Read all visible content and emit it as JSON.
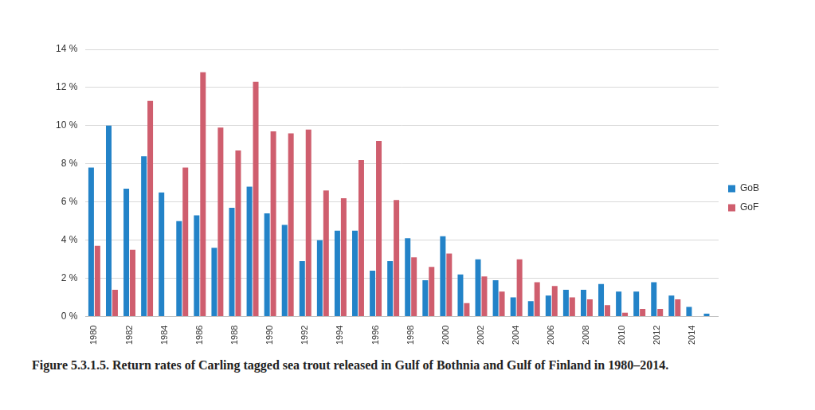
{
  "chart_data": {
    "type": "bar",
    "title": "Figure 5.3.1.5. Return rates of Carling tagged sea trout released in Gulf of Bothnia and Gulf of Finland in 1980–2014.",
    "categories": [
      "1980",
      null,
      "1982",
      null,
      "1984",
      null,
      "1986",
      null,
      "1988",
      null,
      "1990",
      null,
      "1992",
      null,
      "1994",
      null,
      "1996",
      null,
      "1998",
      null,
      "2000",
      null,
      "2002",
      null,
      "2004",
      null,
      "2006",
      null,
      "2008",
      null,
      "2010",
      null,
      "2012",
      null,
      "2014",
      null
    ],
    "series": [
      {
        "name": "GoB",
        "color": "#2383c8",
        "values": [
          7.8,
          10.0,
          6.7,
          8.4,
          6.5,
          5.0,
          5.3,
          3.6,
          5.7,
          6.8,
          5.4,
          4.8,
          2.9,
          4.0,
          4.5,
          4.5,
          2.4,
          2.9,
          4.1,
          1.9,
          4.2,
          2.2,
          3.0,
          1.9,
          1.0,
          0.8,
          1.1,
          1.4,
          1.4,
          1.7,
          1.3,
          1.3,
          1.8,
          1.1,
          0.5,
          0.15
        ]
      },
      {
        "name": "GoF",
        "color": "#cf5e6e",
        "values": [
          3.7,
          1.4,
          3.5,
          11.3,
          null,
          7.8,
          12.8,
          9.9,
          8.7,
          12.3,
          9.7,
          9.6,
          9.8,
          6.6,
          6.2,
          8.2,
          9.2,
          6.1,
          3.1,
          2.6,
          3.3,
          0.7,
          2.1,
          1.3,
          3.0,
          1.8,
          1.6,
          1.0,
          0.9,
          0.6,
          0.2,
          0.4,
          0.4,
          0.9,
          null,
          null
        ]
      }
    ],
    "ylim": [
      0,
      14
    ],
    "yticks": [
      {
        "value": 0,
        "label": "0 %"
      },
      {
        "value": 2,
        "label": "2 %"
      },
      {
        "value": 4,
        "label": "4 %"
      },
      {
        "value": 6,
        "label": "6 %"
      },
      {
        "value": 8,
        "label": "8 %"
      },
      {
        "value": 10,
        "label": "10 %"
      },
      {
        "value": 12,
        "label": "12 %"
      },
      {
        "value": 14,
        "label": "14 %"
      }
    ],
    "grid": true,
    "legend": "right"
  }
}
